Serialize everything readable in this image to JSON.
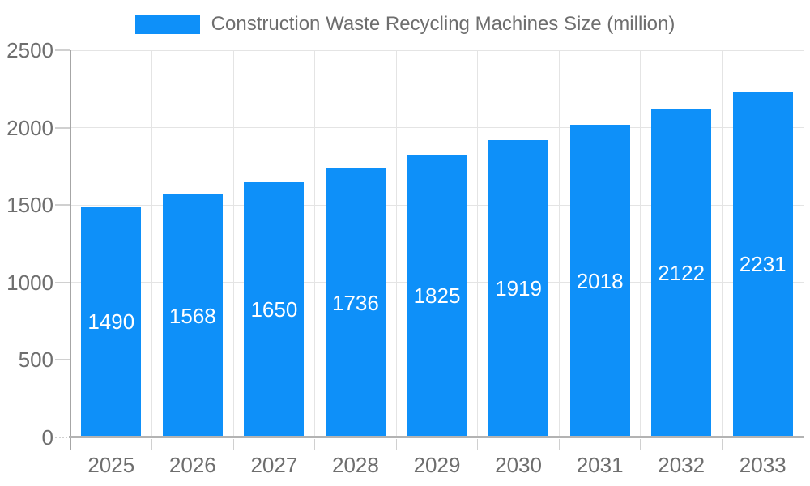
{
  "chart_data": {
    "type": "bar",
    "title": "Construction Waste Recycling Machines Size (million)",
    "categories": [
      "2025",
      "2026",
      "2027",
      "2028",
      "2029",
      "2030",
      "2031",
      "2032",
      "2033"
    ],
    "values": [
      1490,
      1568,
      1650,
      1736,
      1825,
      1919,
      2018,
      2122,
      2231
    ],
    "xlabel": "",
    "ylabel": "",
    "ylim": [
      0,
      2500
    ],
    "yticks": [
      0,
      500,
      1000,
      1500,
      2000,
      2500
    ],
    "grid": true,
    "legend_position": "top",
    "value_label_position": "inside-center",
    "bar_color": "#0e90f9",
    "value_label_color": "#ffffff"
  },
  "colors": {
    "bar": "#0e90f9",
    "axis_text": "#6e6e6e",
    "gridline": "#e4e4e4",
    "tick_mark": "#d0d0d0",
    "axis_line": "#a6a6a6",
    "baseline": "#b3b3b3",
    "background": "#ffffff"
  }
}
